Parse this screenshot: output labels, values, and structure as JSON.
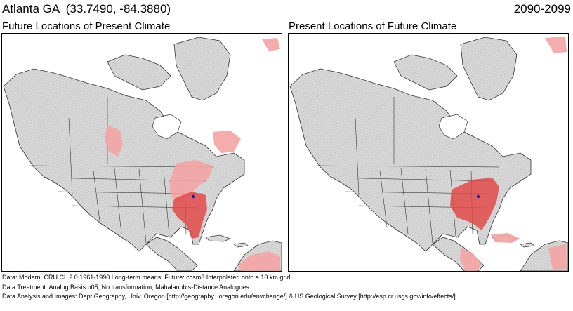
{
  "header": {
    "location": "Atlanta GA",
    "coordinates": "(33.7490, -84.3880)",
    "period": "2090-2099"
  },
  "panels": [
    {
      "label": "Future Locations of Present Climate"
    },
    {
      "label": "Present Locations of Future Climate"
    }
  ],
  "credits": [
    "Data:  Modern: CRU CL 2.0 1961-1990 Long-term means; Future: ccsm3 Interpolated onto a 10 km grid",
    "Data Treatment:  Analog Basis b05; No transformation; Mahalanobis-Distance Analogues",
    "Data Analysis and Images:  Dept Geography, Univ. Oregon [http://geography.uoregon.edu/envchange/] & US Geological Survey [http://esp.cr.usgs.gov/info/effects/]"
  ],
  "colors": {
    "land": "#d9d9d9",
    "water": "#ffffff",
    "analog_light": "#f4a3a3",
    "analog_strong": "#e24a4a",
    "site_marker": "#1a1aa8",
    "borders": "#1a1a1a"
  }
}
